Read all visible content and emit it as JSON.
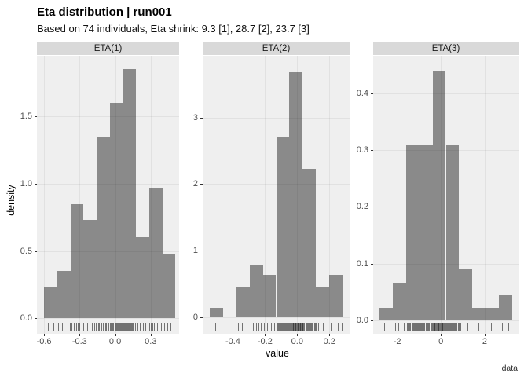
{
  "title": "Eta distribution | run001",
  "subtitle": "Based on 74 individuals, Eta shrink: 9.3 [1], 28.7 [2], 23.7 [3]",
  "axes": {
    "x_label": "value",
    "y_label": "density"
  },
  "caption": "data",
  "colors": {
    "bar": "#8a8a8a",
    "panel_bg": "#efefef",
    "strip_bg": "#d9d9d9",
    "grid_overlay": "rgba(0,0,0,0.055)",
    "tick_label": "#4d4d4d",
    "tick_mark": "#333333",
    "rug": "rgba(30,30,30,0.6)"
  },
  "chart_data": {
    "type": "bar",
    "subtype": "faceted-density-histogram-with-rug",
    "title": "Eta distribution | run001",
    "subtitle": "Based on 74 individuals, Eta shrink: 9.3 [1], 28.7 [2], 23.7 [3]",
    "xlabel": "value",
    "ylabel": "density",
    "n_individuals": 74,
    "eta_shrink": [
      {
        "eta": 1,
        "shrink_pct": 9.3
      },
      {
        "eta": 2,
        "shrink_pct": 28.7
      },
      {
        "eta": 3,
        "shrink_pct": 23.7
      }
    ],
    "legend": "none",
    "grid": "on",
    "facets": [
      {
        "label": "ETA(1)",
        "bin_start": -0.6,
        "bin_width": 0.111,
        "densities": [
          0.235,
          0.35,
          0.85,
          0.73,
          1.35,
          1.6,
          1.85,
          0.6,
          0.97,
          0.48
        ],
        "x_domain": [
          -0.66,
          0.54
        ],
        "y_domain": [
          -0.115,
          1.95
        ],
        "x_tick_values": [
          -0.6,
          -0.3,
          0,
          0.3
        ],
        "x_tick_labels": [
          "-0.6",
          "-0.3",
          "0.0",
          "0.3"
        ],
        "y_tick_values": [
          0,
          0.5,
          1,
          1.5
        ],
        "y_tick_labels": [
          "0.0",
          "0.5",
          "1.0",
          "1.5"
        ],
        "rug": [
          -0.57,
          -0.52,
          -0.48,
          -0.45,
          -0.402,
          -0.382,
          -0.365,
          -0.348,
          -0.33,
          -0.315,
          -0.3,
          -0.285,
          -0.268,
          -0.25,
          -0.233,
          -0.215,
          -0.196,
          -0.176,
          -0.165,
          -0.155,
          -0.145,
          -0.135,
          -0.125,
          -0.115,
          -0.105,
          -0.095,
          -0.085,
          -0.075,
          -0.065,
          -0.054,
          -0.046,
          -0.038,
          -0.03,
          -0.022,
          -0.014,
          -0.006,
          0.002,
          0.01,
          0.018,
          0.026,
          0.034,
          0.044,
          0.052,
          0.059,
          0.066,
          0.073,
          0.08,
          0.087,
          0.094,
          0.101,
          0.108,
          0.115,
          0.122,
          0.129,
          0.136,
          0.143,
          0.152,
          0.17,
          0.19,
          0.21,
          0.232,
          0.255,
          0.275,
          0.288,
          0.3,
          0.313,
          0.326,
          0.34,
          0.353,
          0.366,
          0.39,
          0.415,
          0.442,
          0.468
        ]
      },
      {
        "label": "ETA(2)",
        "bin_start": -0.546,
        "bin_width": 0.083,
        "densities": [
          0.14,
          0,
          0.46,
          0.78,
          0.63,
          2.7,
          3.68,
          2.23,
          0.46,
          0.63
        ],
        "x_domain": [
          -0.588,
          0.326
        ],
        "y_domain": [
          -0.25,
          3.93
        ],
        "x_tick_values": [
          -0.4,
          -0.2,
          0,
          0.2
        ],
        "x_tick_labels": [
          "-0.4",
          "-0.2",
          "0.0",
          "0.2"
        ],
        "y_tick_values": [
          0,
          1,
          2,
          3
        ],
        "y_tick_labels": [
          "0",
          "1",
          "2",
          "3"
        ],
        "rug": [
          -0.51,
          -0.37,
          -0.345,
          -0.312,
          -0.29,
          -0.274,
          -0.258,
          -0.241,
          -0.224,
          -0.205,
          -0.185,
          -0.163,
          -0.141,
          -0.128,
          -0.123,
          -0.118,
          -0.113,
          -0.108,
          -0.104,
          -0.099,
          -0.094,
          -0.089,
          -0.084,
          -0.079,
          -0.074,
          -0.069,
          -0.065,
          -0.06,
          -0.055,
          -0.05,
          -0.046,
          -0.042,
          -0.039,
          -0.035,
          -0.031,
          -0.028,
          -0.024,
          -0.02,
          -0.017,
          -0.013,
          -0.009,
          -0.006,
          -0.002,
          0.002,
          0.005,
          0.009,
          0.013,
          0.016,
          0.02,
          0.024,
          0.027,
          0.031,
          0.034,
          0.038,
          0.044,
          0.05,
          0.056,
          0.062,
          0.068,
          0.074,
          0.08,
          0.086,
          0.092,
          0.098,
          0.104,
          0.11,
          0.116,
          0.13,
          0.158,
          0.187,
          0.21,
          0.232,
          0.254,
          0.276
        ]
      },
      {
        "label": "ETA(3)",
        "bin_start": -2.8,
        "bin_width": 0.605,
        "densities": [
          0.022,
          0.066,
          0.31,
          0.31,
          0.44,
          0.31,
          0.09,
          0.022,
          0.022,
          0.045
        ],
        "x_domain": [
          -3.1,
          3.55
        ],
        "y_domain": [
          -0.0234,
          0.466
        ],
        "x_tick_values": [
          -2,
          0,
          2
        ],
        "x_tick_labels": [
          "-2",
          "0",
          "2"
        ],
        "y_tick_values": [
          0,
          0.1,
          0.2,
          0.3,
          0.4
        ],
        "y_tick_labels": [
          "0.0",
          "0.1",
          "0.2",
          "0.3",
          "0.4"
        ],
        "rug": [
          -2.6,
          -2.1,
          -1.95,
          -1.7,
          -1.57,
          -1.53,
          -1.48,
          -1.44,
          -1.4,
          -1.35,
          -1.31,
          -1.27,
          -1.22,
          -1.18,
          -1.14,
          -1.09,
          -1.05,
          -1.01,
          -0.96,
          -0.92,
          -0.88,
          -0.83,
          -0.79,
          -0.75,
          -0.7,
          -0.66,
          -0.62,
          -0.57,
          -0.53,
          -0.49,
          -0.44,
          -0.4,
          -0.37,
          -0.34,
          -0.31,
          -0.28,
          -0.25,
          -0.22,
          -0.19,
          -0.16,
          -0.13,
          -0.1,
          -0.07,
          -0.04,
          -0.01,
          0.02,
          0.05,
          0.08,
          0.11,
          0.14,
          0.17,
          0.2,
          0.25,
          0.29,
          0.33,
          0.38,
          0.42,
          0.46,
          0.51,
          0.55,
          0.59,
          0.64,
          0.68,
          0.72,
          0.77,
          0.81,
          0.9,
          1.05,
          1.2,
          1.35,
          1.7,
          2.3,
          2.8,
          3.1
        ]
      }
    ]
  }
}
